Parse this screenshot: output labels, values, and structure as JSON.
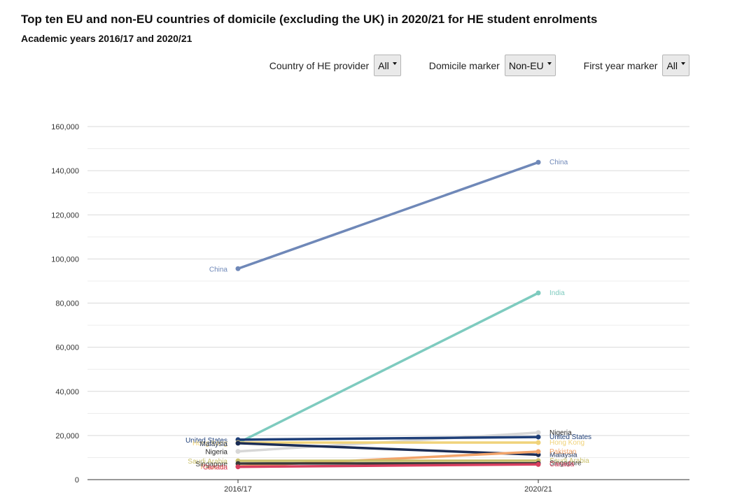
{
  "header": {
    "title": "Top ten EU and non-EU countries of domicile (excluding the UK) in 2020/21 for HE student enrolments",
    "subtitle": "Academic years 2016/17 and 2020/21"
  },
  "filters": [
    {
      "label": "Country of HE provider",
      "value": "All"
    },
    {
      "label": "Domicile marker",
      "value": "Non-EU"
    },
    {
      "label": "First year marker",
      "value": "All"
    }
  ],
  "chart_data": {
    "type": "line",
    "title": "Top ten EU and non-EU countries of domicile (excluding the UK) in 2020/21 for HE student enrolments",
    "subtitle": "Academic years 2016/17 and 2020/21",
    "xlabel": "",
    "ylabel": "",
    "x": [
      "2016/17",
      "2020/21"
    ],
    "ylim": [
      0,
      160000
    ],
    "yticks": [
      0,
      20000,
      40000,
      60000,
      80000,
      100000,
      120000,
      140000,
      160000
    ],
    "ytick_labels": [
      "0",
      "20,000",
      "40,000",
      "60,000",
      "80,000",
      "100,000",
      "120,000",
      "140,000",
      "160,000"
    ],
    "grid": true,
    "legend": "direct labels at both ends of each line",
    "series": [
      {
        "name": "China",
        "values": [
          95600,
          143800
        ],
        "color": "#6f88b8",
        "left_label": "China",
        "right_label": "China"
      },
      {
        "name": "India",
        "values": [
          16600,
          84600
        ],
        "color": "#7ecbbf",
        "left_label": "",
        "right_label": "India"
      },
      {
        "name": "Nigeria",
        "values": [
          12800,
          21300
        ],
        "color": "#d7d7d7",
        "left_label": "Nigeria",
        "right_label": "Nigeria"
      },
      {
        "name": "United States",
        "values": [
          18100,
          19300
        ],
        "color": "#1f3f78",
        "left_label": "United States",
        "right_label": "United States"
      },
      {
        "name": "Hong Kong",
        "values": [
          16800,
          16800
        ],
        "color": "#f0d37a",
        "left_label": "Hong Kong",
        "right_label": "Hong Kong"
      },
      {
        "name": "Malaysia",
        "values": [
          16500,
          11300
        ],
        "color": "#1a2c55",
        "left_label": "Malaysia",
        "right_label": "Malaysia"
      },
      {
        "name": "Pakistan",
        "values": [
          6000,
          12700
        ],
        "color": "#f2a46a",
        "left_label": "Pakistan",
        "right_label": "Pakistan"
      },
      {
        "name": "Saudi Arabia",
        "values": [
          8500,
          8600
        ],
        "color": "#c9c06a",
        "left_label": "Saudi Arabia",
        "right_label": "Saudi Arabia"
      },
      {
        "name": "Singapore",
        "values": [
          7300,
          7400
        ],
        "color": "#3a3a3a",
        "left_label": "Singapore",
        "right_label": "Singapore"
      },
      {
        "name": "Canada",
        "values": [
          5800,
          6900
        ],
        "color": "#d83f5f",
        "left_label": "Canada",
        "right_label": "Canada"
      }
    ]
  }
}
